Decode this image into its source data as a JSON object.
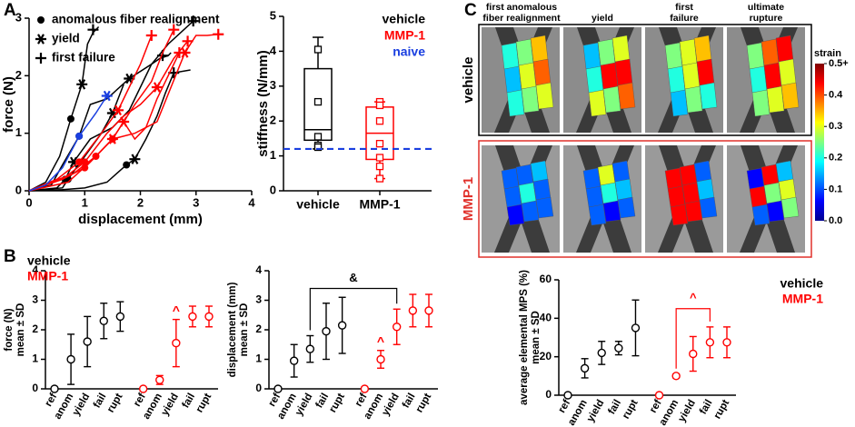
{
  "figure": {
    "panel_labels": [
      "A",
      "B",
      "C"
    ]
  },
  "image_grid": {
    "column_headers": [
      [
        "first anomalous",
        "fiber realignment"
      ],
      [
        "yield"
      ],
      [
        "first",
        "failure"
      ],
      [
        "ultimate",
        "rupture"
      ]
    ],
    "row_labels": [
      "vehicle",
      "MMP-1"
    ],
    "colorbar": {
      "title": "strain",
      "lim": [
        0,
        0.5
      ],
      "ticks": [
        {
          "value": 0,
          "label": "0.0"
        },
        0.1,
        0.2,
        0.3,
        0.4,
        {
          "value": 0.5,
          "label": "0.5+"
        }
      ]
    }
  },
  "chart_data": [
    {
      "type": "line",
      "xlabel": "displacement (mm)",
      "ylabel": "force (N)",
      "xlim": [
        0,
        4
      ],
      "xticks": [
        0,
        1,
        2,
        3,
        4
      ],
      "ylim": [
        0,
        3
      ],
      "yticks": [
        0,
        1,
        2,
        3
      ],
      "legend": [
        {
          "label": "anomalous fiber realignment",
          "marker": "anomalous"
        },
        {
          "label": "yield",
          "marker": "yield"
        },
        {
          "label": "first failure",
          "marker": "failure"
        }
      ],
      "series": [
        {
          "color": "#000000",
          "x": [
            0,
            0.3,
            0.55,
            0.75,
            0.95,
            1.05,
            1.15,
            1.25
          ],
          "values": [
            0,
            0.15,
            0.6,
            1.25,
            1.85,
            2.55,
            2.75,
            2.85
          ],
          "anomalous": [
            0.75,
            1.25
          ],
          "yield": [
            0.95,
            1.85
          ],
          "failure": [
            1.15,
            2.8
          ]
        },
        {
          "color": "#000000",
          "x": [
            0,
            0.4,
            0.6,
            0.9,
            1.1,
            1.4,
            1.8,
            2.2,
            2.5,
            2.95
          ],
          "values": [
            0,
            0.1,
            0.45,
            0.95,
            1.5,
            1.6,
            1.95,
            2.2,
            2.55,
            2.95
          ],
          "anomalous": [
            0.9,
            0.95
          ],
          "yield": [
            1.8,
            1.95
          ],
          "failure": [
            2.95,
            2.95
          ]
        },
        {
          "color": "#000000",
          "x": [
            0,
            0.5,
            0.65,
            0.8,
            1.1,
            1.5,
            1.8,
            2.0,
            2.2,
            2.35,
            2.5,
            2.55
          ],
          "values": [
            0,
            0.05,
            0.2,
            0.5,
            0.9,
            1.1,
            1.4,
            1.8,
            2.2,
            2.3,
            2.35,
            2.4
          ],
          "anomalous": [
            0.65,
            0.2
          ],
          "yield": [
            0.8,
            0.5
          ],
          "failure": [
            2.4,
            2.35
          ]
        },
        {
          "color": "#000000",
          "x": [
            0,
            0.6,
            0.7,
            1.0,
            1.3,
            1.5,
            1.7
          ],
          "values": [
            0,
            0.05,
            0.2,
            0.6,
            1.0,
            1.35,
            1.85
          ],
          "anomalous": [
            0.7,
            0.2
          ],
          "yield": [
            1.5,
            1.35
          ]
        },
        {
          "color": "#000000",
          "x": [
            0,
            0.6,
            1.0,
            1.4,
            1.75,
            1.9,
            2.1,
            2.3,
            2.45,
            2.6,
            2.9
          ],
          "values": [
            0,
            0.02,
            0.05,
            0.15,
            0.45,
            0.55,
            0.9,
            1.3,
            1.7,
            2.05,
            2.1
          ],
          "anomalous": [
            1.75,
            0.45
          ],
          "yield": [
            1.9,
            0.55
          ],
          "failure": [
            2.6,
            2.05
          ]
        },
        {
          "color": "#ff0000",
          "x": [
            0,
            0.5,
            0.9,
            1.3,
            1.6,
            1.8,
            2.0,
            2.2
          ],
          "values": [
            0,
            0.2,
            0.5,
            1.0,
            1.4,
            1.8,
            2.2,
            2.7
          ],
          "anomalous": [
            0.9,
            0.5
          ],
          "yield": [
            1.6,
            1.4
          ],
          "failure": [
            2.2,
            2.7
          ]
        },
        {
          "color": "#ff0000",
          "x": [
            0,
            0.6,
            1.0,
            1.4,
            1.7,
            2.0,
            2.3,
            2.6,
            2.85
          ],
          "values": [
            0,
            0.2,
            0.5,
            1.0,
            1.3,
            1.5,
            1.8,
            2.3,
            2.6
          ],
          "anomalous": [
            1.0,
            0.5
          ],
          "yield": [
            2.3,
            1.8
          ],
          "failure": [
            2.85,
            2.6
          ]
        },
        {
          "color": "#ff0000",
          "x": [
            0,
            0.7,
            1.1,
            1.5,
            1.9,
            2.3,
            2.8,
            3.0,
            3.2,
            3.4
          ],
          "values": [
            0,
            0.15,
            0.5,
            0.9,
            1.0,
            1.2,
            2.4,
            2.7,
            2.7,
            2.72
          ],
          "anomalous": [
            1.5,
            0.9
          ],
          "yield": [
            2.8,
            2.4
          ],
          "failure": [
            3.4,
            2.72
          ]
        },
        {
          "color": "#ff0000",
          "x": [
            0,
            0.8,
            1.2,
            1.5,
            1.7,
            1.9,
            2.1,
            2.3,
            2.5,
            2.7
          ],
          "values": [
            0,
            0.3,
            0.6,
            0.9,
            1.2,
            0.9,
            1.1,
            1.6,
            2.0,
            2.4
          ],
          "anomalous": [
            1.2,
            0.6
          ],
          "yield": [
            1.7,
            1.2
          ],
          "failure": [
            2.7,
            2.4
          ]
        },
        {
          "color": "#ff0000",
          "x": [
            0,
            0.6,
            1.0,
            1.5,
            1.9,
            2.2,
            2.4,
            2.6
          ],
          "values": [
            0,
            0.2,
            0.4,
            0.9,
            1.5,
            1.9,
            2.4,
            2.8
          ],
          "anomalous": [
            1.0,
            0.4
          ],
          "yield": [
            1.5,
            0.9
          ],
          "failure": [
            2.6,
            2.8
          ]
        },
        {
          "color": "#1a3fe0",
          "x": [
            0,
            0.3,
            0.6,
            0.9,
            1.2,
            1.4
          ],
          "values": [
            0,
            0.1,
            0.4,
            0.95,
            1.35,
            1.65
          ],
          "anomalous": [
            0.9,
            0.95
          ],
          "yield": [
            1.4,
            1.65
          ]
        }
      ]
    },
    {
      "type": "box",
      "ylabel": "stiffness (N/mm)",
      "categories": [
        "vehicle",
        "MMP-1"
      ],
      "ylim": [
        0,
        5
      ],
      "yticks": [
        0,
        1,
        2,
        3,
        4,
        5
      ],
      "series": [
        {
          "name": "vehicle",
          "color": "#000000",
          "min": 1.2,
          "q1": 1.45,
          "median": 1.75,
          "q3": 3.5,
          "max": 4.4,
          "points": [
            4.05,
            2.55,
            1.55,
            1.3,
            1.25
          ]
        },
        {
          "name": "MMP-1",
          "color": "#ff0000",
          "min": 0.35,
          "q1": 0.9,
          "median": 1.65,
          "q3": 2.4,
          "max": 2.55,
          "points": [
            2.55,
            2.45,
            2.0,
            1.35,
            0.95,
            0.7,
            0.35
          ]
        }
      ],
      "reference_line": {
        "name": "naive",
        "color": "#1a3fe0",
        "value": 1.2
      }
    },
    {
      "type": "errorbar",
      "ylabel": [
        "force (N)",
        "mean ± SD"
      ],
      "legend": true,
      "categories": [
        "ref",
        "anom",
        "yield",
        "fail",
        "rupt"
      ],
      "ylim": [
        0,
        4
      ],
      "yticks": [
        0,
        1,
        2,
        3,
        4
      ],
      "series": [
        {
          "name": "vehicle",
          "color": "#000000",
          "values": [
            0,
            1.0,
            1.6,
            2.3,
            2.45
          ],
          "errors": [
            0,
            0.85,
            0.85,
            0.6,
            0.5
          ]
        },
        {
          "name": "MMP-1",
          "color": "#ff0000",
          "values": [
            0,
            0.3,
            1.55,
            2.45,
            2.45
          ],
          "errors": [
            0,
            0.15,
            0.8,
            0.35,
            0.35
          ]
        }
      ],
      "annotations": [
        {
          "text": "^",
          "series": 1,
          "index": 2
        }
      ]
    },
    {
      "type": "errorbar",
      "ylabel": [
        "displacement (mm)",
        "mean ± SD"
      ],
      "legend": false,
      "categories": [
        "ref",
        "anom",
        "yield",
        "fail",
        "rupt"
      ],
      "ylim": [
        0,
        4
      ],
      "yticks": [
        0,
        1,
        2,
        3,
        4
      ],
      "series": [
        {
          "name": "vehicle",
          "color": "#000000",
          "values": [
            0,
            0.95,
            1.35,
            1.95,
            2.15
          ],
          "errors": [
            0,
            0.55,
            0.45,
            0.95,
            0.95
          ]
        },
        {
          "name": "MMP-1",
          "color": "#ff0000",
          "values": [
            0,
            1.0,
            2.1,
            2.65,
            2.65
          ],
          "errors": [
            0,
            0.3,
            0.6,
            0.55,
            0.55
          ]
        }
      ],
      "annotations": [
        {
          "text": "^",
          "series": 1,
          "index": 1
        }
      ],
      "brackets": [
        {
          "text": "&",
          "color": "#000000",
          "from": [
            0,
            2
          ],
          "to": [
            1,
            2
          ],
          "y": 3.4
        }
      ]
    },
    {
      "type": "errorbar",
      "ylabel": [
        "average elemental MPS (%)",
        "mean ± SD"
      ],
      "legend": true,
      "categories": [
        "ref",
        "anom",
        "yield",
        "fail",
        "rupt"
      ],
      "ylim": [
        0,
        60
      ],
      "yticks": [
        0,
        20,
        40,
        60
      ],
      "series": [
        {
          "name": "vehicle",
          "color": "#000000",
          "values": [
            0,
            14,
            22,
            24.5,
            35
          ],
          "errors": [
            0,
            5,
            6,
            3.5,
            14.5
          ]
        },
        {
          "name": "MMP-1",
          "color": "#ff0000",
          "values": [
            0,
            10,
            21.5,
            27.5,
            27.5
          ],
          "errors": [
            0,
            1,
            9,
            8,
            8
          ]
        }
      ],
      "brackets": [
        {
          "text": "^",
          "color": "#ff0000",
          "from": [
            1,
            1
          ],
          "to": [
            1,
            3
          ],
          "y": 45
        }
      ]
    }
  ]
}
